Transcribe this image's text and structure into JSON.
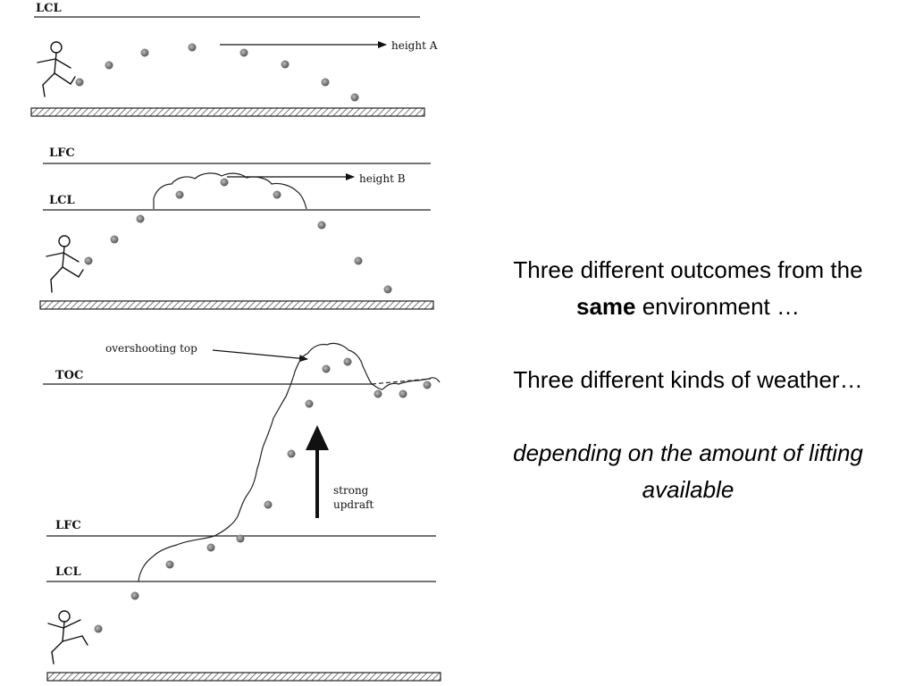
{
  "panel_a": {
    "level_label": "LCL",
    "height_label": "height A"
  },
  "panel_b": {
    "lfc_label": "LFC",
    "lcl_label": "LCL",
    "height_label": "height B"
  },
  "panel_c": {
    "toc_label": "TOC",
    "lfc_label": "LFC",
    "lcl_label": "LCL",
    "overshoot_label": "overshooting top",
    "updraft_line1": "strong",
    "updraft_line2": "updraft"
  },
  "text": {
    "para1_before": "Three different outcomes from the ",
    "para1_bold": "same",
    "para1_after": " environment …",
    "para2": "Three different kinds of weather…",
    "para3": "depending on the amount of lifting available"
  }
}
